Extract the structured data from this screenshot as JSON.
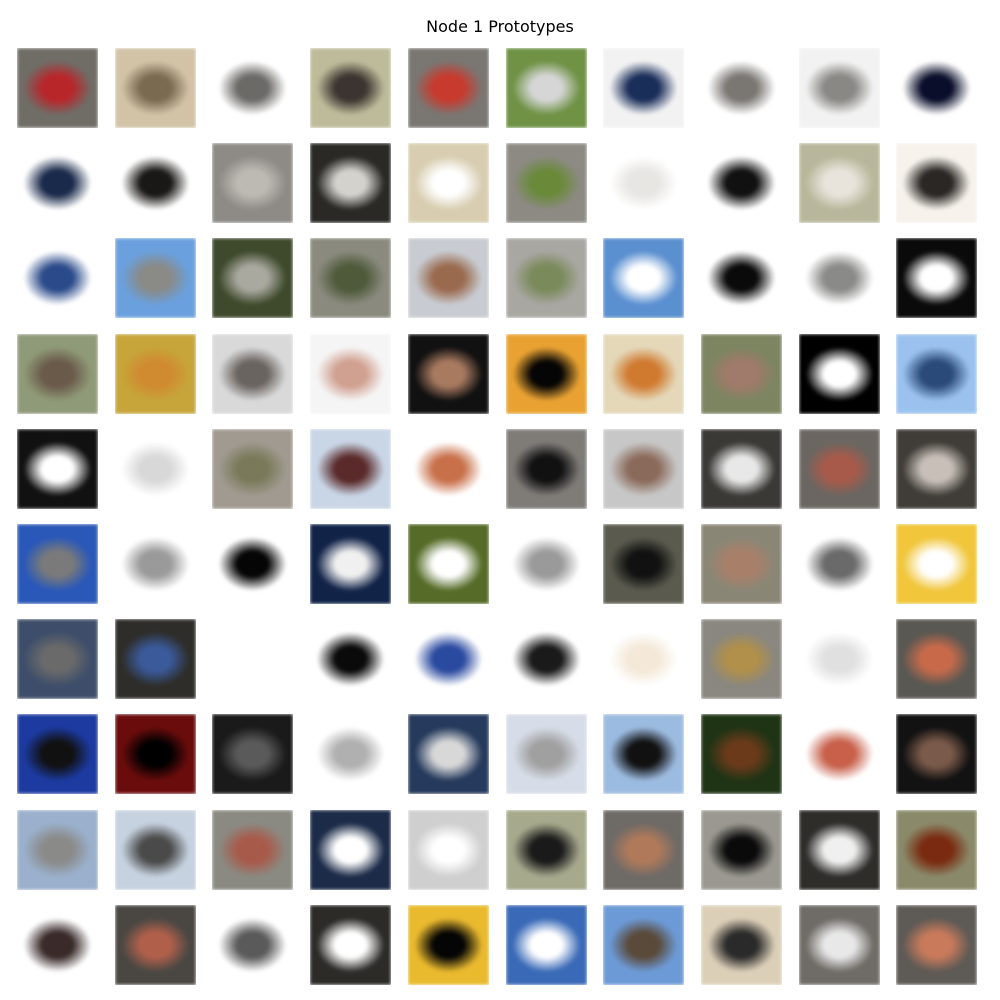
{
  "title": "Node 1 Prototypes",
  "grid": {
    "rows": 10,
    "cols": 10
  },
  "tiles": [
    [
      "#706c66",
      "#d2c3a6",
      "#ffffff",
      "#bdbb9a",
      "#7a7672",
      "#6f9245",
      "#f2f2f2",
      "#ffffff",
      "#f2f2f2",
      "#ffffff"
    ],
    [
      "#ffffff",
      "#ffffff",
      "#8e8b86",
      "#2a2925",
      "#d8cdb0",
      "#8d8a84",
      "#ffffff",
      "#ffffff",
      "#b9b79b",
      "#f7f2ec"
    ],
    [
      "#ffffff",
      "#6aa0dd",
      "#3f4a2c",
      "#8a8a7e",
      "#c8ccd2",
      "#a9a7a2",
      "#5a8fd0",
      "#ffffff",
      "#ffffff",
      "#0a0a0a"
    ],
    [
      "#8f9a78",
      "#c7a53a",
      "#d9d9d9",
      "#f5f5f5",
      "#111111",
      "#e9a232",
      "#e4d8b9",
      "#7c8560",
      "#000000",
      "#9bc2ee"
    ],
    [
      "#111111",
      "#ffffff",
      "#a09a90",
      "#c9d6e6",
      "#ffffff",
      "#7f7c78",
      "#c7c7c7",
      "#3a3935",
      "#6b6661",
      "#403d38"
    ],
    [
      "#2a58b8",
      "#ffffff",
      "#ffffff",
      "#122348",
      "#556b27",
      "#ffffff",
      "#5a5a4e",
      "#8a8676",
      "#ffffff",
      "#f1c63b"
    ],
    [
      "#3e4e6a",
      "#2e2d2a",
      "#ffffff",
      "#ffffff",
      "#ffffff",
      "#ffffff",
      "#ffffff",
      "#8a8780",
      "#ffffff",
      "#5a5852"
    ],
    [
      "#1c3aa0",
      "#6b0c0c",
      "#1a1a1a",
      "#ffffff",
      "#253a5c",
      "#d7dde8",
      "#9cbbe0",
      "#1f3415",
      "#ffffff",
      "#121212"
    ],
    [
      "#9ab0cc",
      "#c6d2e0",
      "#8a8a82",
      "#1c2b48",
      "#cfcfcf",
      "#a7a98d",
      "#6e6a66",
      "#9a9890",
      "#2e2d2a",
      "#8a8a6a"
    ],
    [
      "#ffffff",
      "#4a4743",
      "#ffffff",
      "#2c2b28",
      "#e9b92e",
      "#3a6ab7",
      "#6c9ad6",
      "#dccfb8",
      "#6f6c67",
      "#5e5a55"
    ]
  ],
  "centers": [
    [
      "#b8262a",
      "#7a6a50",
      "#6c6a67",
      "#3c3430",
      "#c83a2e",
      "#d6d6d6",
      "#1a2e5a",
      "#7a7773",
      "#8a8884",
      "#0a0e2a"
    ],
    [
      "#1a2a4a",
      "#1a1816",
      "#bdbab4",
      "#d4d2cd",
      "#ffffff",
      "#6a8a3a",
      "#e8e6e3",
      "#111111",
      "#e8e4dc",
      "#2a2725"
    ],
    [
      "#2a4a8a",
      "#8a8a86",
      "#a9a9a0",
      "#4e5a3a",
      "#9a6a4e",
      "#7a8a5a",
      "#ffffff",
      "#0a0a0a",
      "#8a8a88",
      "#ffffff"
    ],
    [
      "#6a5a4a",
      "#d08a30",
      "#6a6460",
      "#d0a090",
      "#a87a60",
      "#050505",
      "#d07a30",
      "#a07a6a",
      "#ffffff",
      "#2a4a7a"
    ],
    [
      "#ffffff",
      "#d8d8d8",
      "#7a7a5a",
      "#5a2a2a",
      "#c8704a",
      "#111111",
      "#8a6a5a",
      "#e8e8e8",
      "#a85a4a",
      "#c8c0b8"
    ],
    [
      "#7a7a7a",
      "#9a9a9a",
      "#050505",
      "#f0f0f0",
      "#ffffff",
      "#9a9a9a",
      "#111111",
      "#a8806a",
      "#6a6a6a",
      "#ffffff"
    ],
    [
      "#6a6a6a",
      "#3a5a9a",
      "#ffffff",
      "#0a0a0a",
      "#2a4aa0",
      "#1a1a1a",
      "#f4e8d8",
      "#b0904a",
      "#e0e0e0",
      "#c86a4a"
    ],
    [
      "#111111",
      "#000000",
      "#5a5a5a",
      "#b0b0b0",
      "#d8d8d8",
      "#a0a0a0",
      "#111111",
      "#6a3a1a",
      "#c8604a",
      "#7a5a4a"
    ],
    [
      "#8a8a88",
      "#4a4a4a",
      "#a85a4a",
      "#ffffff",
      "#ffffff",
      "#1a1a1a",
      "#b07a5a",
      "#0a0a0a",
      "#f0f0f0",
      "#7a2a10"
    ],
    [
      "#3a2a2a",
      "#b0604a",
      "#5a5a5a",
      "#ffffff",
      "#050505",
      "#ffffff",
      "#5a4a3a",
      "#2a2a2a",
      "#e8e8e8",
      "#c87a5a"
    ]
  ]
}
